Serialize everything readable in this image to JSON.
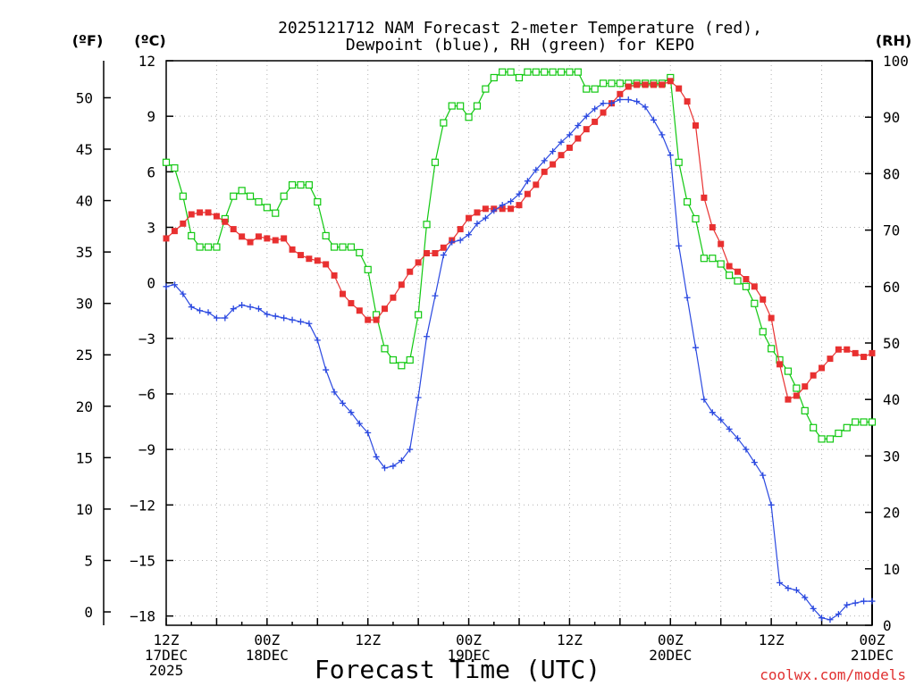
{
  "chart_data": {
    "type": "line",
    "title_line1": "2025121712 NAM Forecast 2-meter Temperature (red),",
    "title_line2": "Dewpoint (blue), RH (green) for KEPO",
    "xlabel": "Forecast Time (UTC)",
    "credit": "coolwx.com/models",
    "units": {
      "fahrenheit": "(ºF)",
      "celsius": "(ºC)",
      "rh": "(RH)"
    },
    "x_range_hours": [
      0,
      84
    ],
    "x_ticks": [
      {
        "hour": 0,
        "lines": [
          "12Z",
          "17DEC",
          "2025"
        ]
      },
      {
        "hour": 12,
        "lines": [
          "00Z",
          "18DEC"
        ]
      },
      {
        "hour": 24,
        "lines": [
          "12Z"
        ]
      },
      {
        "hour": 36,
        "lines": [
          "00Z",
          "19DEC"
        ]
      },
      {
        "hour": 48,
        "lines": [
          "12Z"
        ]
      },
      {
        "hour": 60,
        "lines": [
          "00Z",
          "20DEC"
        ]
      },
      {
        "hour": 72,
        "lines": [
          "12Z"
        ]
      },
      {
        "hour": 84,
        "lines": [
          "00Z",
          "21DEC"
        ]
      }
    ],
    "celsius_axis": {
      "range": [
        -18.5,
        12
      ],
      "ticks": [
        "12",
        "9",
        "6",
        "3",
        "0",
        "−3",
        "−6",
        "−9",
        "−12",
        "−15",
        "−18"
      ],
      "tick_values": [
        12,
        9,
        6,
        3,
        0,
        -3,
        -6,
        -9,
        -12,
        -15,
        -18
      ]
    },
    "fahrenheit_axis": {
      "ticks": [
        "50",
        "45",
        "40",
        "35",
        "30",
        "25",
        "20",
        "15",
        "10",
        "5",
        "0"
      ],
      "tick_values": [
        50,
        45,
        40,
        35,
        30,
        25,
        20,
        15,
        10,
        5,
        0
      ]
    },
    "rh_axis": {
      "range": [
        0,
        100
      ],
      "ticks": [
        "100",
        "90",
        "80",
        "70",
        "60",
        "50",
        "40",
        "30",
        "20",
        "10",
        "0"
      ],
      "tick_values": [
        100,
        90,
        80,
        70,
        60,
        50,
        40,
        30,
        20,
        10,
        0
      ]
    },
    "colors": {
      "temperature": "#e83030",
      "dewpoint": "#2a48e0",
      "rh": "#10c810",
      "grid": "#b0b0b0",
      "credit": "#e03030"
    },
    "series": [
      {
        "name": "Temperature",
        "unit": "C",
        "x": [
          0,
          1,
          2,
          3,
          4,
          5,
          6,
          7,
          8,
          9,
          10,
          11,
          12,
          13,
          14,
          15,
          16,
          17,
          18,
          19,
          20,
          21,
          22,
          23,
          24,
          25,
          26,
          27,
          28,
          29,
          30,
          31,
          32,
          33,
          34,
          35,
          36,
          37,
          38,
          39,
          40,
          41,
          42,
          43,
          44,
          45,
          46,
          47,
          48,
          49,
          50,
          51,
          52,
          53,
          54,
          55,
          56,
          57,
          58,
          59,
          60,
          61,
          62,
          63,
          64,
          65,
          66,
          67,
          68,
          69,
          70,
          71,
          72,
          73,
          74,
          75,
          76,
          77,
          78,
          79,
          80,
          81,
          82,
          83,
          84
        ],
        "values": [
          2.4,
          2.8,
          3.2,
          3.7,
          3.8,
          3.8,
          3.6,
          3.3,
          2.9,
          2.5,
          2.2,
          2.5,
          2.4,
          2.3,
          2.4,
          1.8,
          1.5,
          1.3,
          1.2,
          1.0,
          0.4,
          -0.6,
          -1.1,
          -1.5,
          -2.0,
          -2.0,
          -1.4,
          -0.8,
          -0.1,
          0.6,
          1.1,
          1.6,
          1.6,
          1.9,
          2.3,
          2.9,
          3.5,
          3.8,
          4.0,
          4.0,
          4.0,
          4.0,
          4.2,
          4.8,
          5.3,
          6.0,
          6.4,
          6.9,
          7.3,
          7.8,
          8.3,
          8.7,
          9.2,
          9.7,
          10.2,
          10.6,
          10.7,
          10.7,
          10.7,
          10.7,
          10.9,
          10.5,
          9.8,
          8.5,
          4.6,
          3.0,
          2.1,
          0.9,
          0.6,
          0.2,
          -0.2,
          -0.9,
          -1.9,
          -4.4,
          -6.3,
          -6.1,
          -5.6,
          -5.0,
          -4.6,
          -4.1,
          -3.6,
          -3.6,
          -3.8,
          -4.0,
          -3.8
        ]
      },
      {
        "name": "Dewpoint",
        "unit": "C",
        "x": [
          0,
          1,
          2,
          3,
          4,
          5,
          6,
          7,
          8,
          9,
          10,
          11,
          12,
          13,
          14,
          15,
          16,
          17,
          18,
          19,
          20,
          21,
          22,
          23,
          24,
          25,
          26,
          27,
          28,
          29,
          30,
          31,
          32,
          33,
          34,
          35,
          36,
          37,
          38,
          39,
          40,
          41,
          42,
          43,
          44,
          45,
          46,
          47,
          48,
          49,
          50,
          51,
          52,
          53,
          54,
          55,
          56,
          57,
          58,
          59,
          60,
          61,
          62,
          63,
          64,
          65,
          66,
          67,
          68,
          69,
          70,
          71,
          72,
          73,
          74,
          75,
          76,
          77,
          78,
          79,
          80,
          81,
          82,
          83,
          84
        ],
        "values": [
          -0.2,
          -0.1,
          -0.6,
          -1.3,
          -1.5,
          -1.6,
          -1.9,
          -1.9,
          -1.4,
          -1.2,
          -1.3,
          -1.4,
          -1.7,
          -1.8,
          -1.9,
          -2.0,
          -2.1,
          -2.2,
          -3.1,
          -4.7,
          -5.9,
          -6.5,
          -7.0,
          -7.6,
          -8.1,
          -9.4,
          -10.0,
          -9.9,
          -9.6,
          -9.0,
          -6.2,
          -2.9,
          -0.7,
          1.5,
          2.2,
          2.3,
          2.6,
          3.2,
          3.5,
          3.9,
          4.2,
          4.4,
          4.8,
          5.5,
          6.1,
          6.6,
          7.1,
          7.6,
          8.0,
          8.5,
          9.0,
          9.4,
          9.7,
          9.7,
          9.9,
          9.9,
          9.8,
          9.5,
          8.8,
          8.0,
          6.9,
          2.0,
          -0.8,
          -3.5,
          -6.3,
          -7.0,
          -7.4,
          -7.9,
          -8.4,
          -9.0,
          -9.7,
          -10.4,
          -12.0,
          -16.2,
          -16.5,
          -16.6,
          -17.0,
          -17.6,
          -18.1,
          -18.2,
          -17.9,
          -17.4,
          -17.3,
          -17.2,
          -17.2
        ]
      },
      {
        "name": "RH",
        "unit": "%",
        "x": [
          0,
          1,
          2,
          3,
          4,
          5,
          6,
          7,
          8,
          9,
          10,
          11,
          12,
          13,
          14,
          15,
          16,
          17,
          18,
          19,
          20,
          21,
          22,
          23,
          24,
          25,
          26,
          27,
          28,
          29,
          30,
          31,
          32,
          33,
          34,
          35,
          36,
          37,
          38,
          39,
          40,
          41,
          42,
          43,
          44,
          45,
          46,
          47,
          48,
          49,
          50,
          51,
          52,
          53,
          54,
          55,
          56,
          57,
          58,
          59,
          60,
          61,
          62,
          63,
          64,
          65,
          66,
          67,
          68,
          69,
          70,
          71,
          72,
          73,
          74,
          75,
          76,
          77,
          78,
          79,
          80,
          81,
          82,
          83,
          84
        ],
        "values": [
          82,
          81,
          76,
          69,
          67,
          67,
          67,
          72,
          76,
          77,
          76,
          75,
          74,
          73,
          76,
          78,
          78,
          78,
          75,
          69,
          67,
          67,
          67,
          66,
          63,
          55,
          49,
          47,
          46,
          47,
          55,
          71,
          82,
          89,
          92,
          92,
          90,
          92,
          95,
          97,
          98,
          98,
          97,
          98,
          98,
          98,
          98,
          98,
          98,
          98,
          95,
          95,
          96,
          96,
          96,
          96,
          96,
          96,
          96,
          96,
          97,
          82,
          75,
          72,
          65,
          65,
          64,
          62,
          61,
          60,
          57,
          52,
          49,
          47,
          45,
          42,
          38,
          35,
          33,
          33,
          34,
          35,
          36,
          36,
          36
        ]
      }
    ]
  }
}
